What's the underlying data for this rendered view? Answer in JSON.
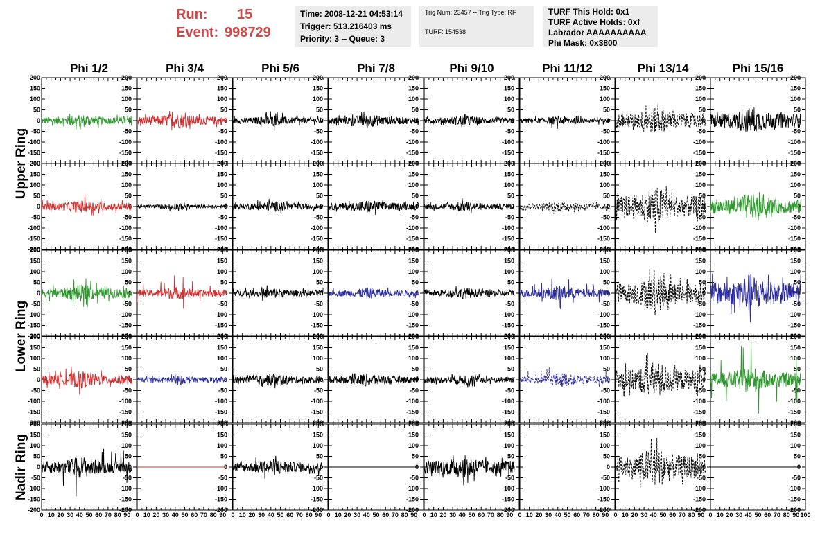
{
  "header": {
    "run_label": "Run:",
    "run_value": "15",
    "event_label": "Event:",
    "event_value": "998729",
    "time": "Time: 2008-12-21 04:53:14",
    "trigger": "Trigger: 513.216403 ms",
    "priority": "Priority: 3 -- Queue: 3",
    "trig_num": "Trig Num: 23457 -- Trig Type: RF",
    "turf": "TURF: 154538",
    "turf_this_hold": "TURF This Hold: 0x1",
    "turf_active_holds": "TURF Active Holds: 0xf",
    "labrador": "Labrador AAAAAAAAAA",
    "phi_mask": "Phi Mask: 0x3800"
  },
  "colors": {
    "run_text": "#d04848",
    "panel_bg": "#ececec",
    "green": "#2e9a2e",
    "red": "#d03030",
    "blue": "#2c2c9c",
    "black": "#000000"
  },
  "chart_data": {
    "type": "line",
    "columns": [
      "Phi 1/2",
      "Phi 3/4",
      "Phi 5/6",
      "Phi 7/8",
      "Phi 9/10",
      "Phi 11/12",
      "Phi 13/14",
      "Phi 15/16"
    ],
    "row_labels": [
      {
        "text": "Upper Ring",
        "rows": [
          0,
          1
        ]
      },
      {
        "text": "Lower Ring",
        "rows": [
          2,
          3
        ]
      },
      {
        "text": "Nadir Ring",
        "rows": [
          4
        ]
      }
    ],
    "xlim": [
      0,
      100
    ],
    "ylim": [
      -200,
      200
    ],
    "x_ticks": [
      "0",
      "10",
      "20",
      "30",
      "40",
      "50",
      "60",
      "70",
      "80",
      "90",
      "100"
    ],
    "y_ticks": [
      "200",
      "150",
      "100",
      "50",
      "0",
      "-50",
      "-100",
      "-150",
      "-200"
    ],
    "waveform_x_range": [
      0,
      95
    ],
    "grid": false,
    "panels": [
      [
        {
          "color": "green",
          "style": "solid",
          "amp": 30,
          "peak": 50
        },
        {
          "color": "red",
          "style": "solid",
          "amp": 35,
          "peak": 55
        },
        {
          "color": "black",
          "style": "solid",
          "amp": 25,
          "peak": 45
        },
        {
          "color": "black",
          "style": "solid",
          "amp": 30,
          "peak": 45
        },
        {
          "color": "black",
          "style": "solid",
          "amp": 25,
          "peak": 40
        },
        {
          "color": "black",
          "style": "solid",
          "amp": 20,
          "peak": 40
        },
        {
          "color": "black",
          "style": "dashed",
          "amp": 60,
          "peak": 85
        },
        {
          "color": "black",
          "style": "solid",
          "amp": 60,
          "peak": 75
        }
      ],
      [
        {
          "color": "red",
          "style": "solid",
          "amp": 30,
          "peak": 60
        },
        {
          "color": "black",
          "style": "solid",
          "amp": 15,
          "peak": 25
        },
        {
          "color": "black",
          "style": "solid",
          "amp": 25,
          "peak": 45
        },
        {
          "color": "black",
          "style": "solid",
          "amp": 30,
          "peak": 45
        },
        {
          "color": "black",
          "style": "solid",
          "amp": 25,
          "peak": 40
        },
        {
          "color": "black",
          "style": "dashed",
          "amp": 25,
          "peak": 40
        },
        {
          "color": "black",
          "style": "dashed",
          "amp": 90,
          "peak": 130
        },
        {
          "color": "green",
          "style": "solid",
          "amp": 60,
          "peak": 85
        }
      ],
      [
        {
          "color": "green",
          "style": "solid",
          "amp": 40,
          "peak": 75
        },
        {
          "color": "red",
          "style": "solid",
          "amp": 30,
          "peak": 85
        },
        {
          "color": "black",
          "style": "solid",
          "amp": 25,
          "peak": 45
        },
        {
          "color": "blue",
          "style": "solid",
          "amp": 25,
          "peak": 45
        },
        {
          "color": "black",
          "style": "solid",
          "amp": 25,
          "peak": 40
        },
        {
          "color": "blue",
          "style": "solid",
          "amp": 35,
          "peak": 80
        },
        {
          "color": "black",
          "style": "dashed",
          "amp": 85,
          "peak": 130
        },
        {
          "color": "blue",
          "style": "solid",
          "amp": 90,
          "peak": 170
        }
      ],
      [
        {
          "color": "red",
          "style": "solid",
          "amp": 40,
          "peak": 80
        },
        {
          "color": "blue",
          "style": "solid",
          "amp": 20,
          "peak": 30
        },
        {
          "color": "black",
          "style": "solid",
          "amp": 30,
          "peak": 45
        },
        {
          "color": "black",
          "style": "solid",
          "amp": 30,
          "peak": 45
        },
        {
          "color": "black",
          "style": "solid",
          "amp": 25,
          "peak": 40
        },
        {
          "color": "blue",
          "style": "dashed",
          "amp": 35,
          "peak": 75
        },
        {
          "color": "black",
          "style": "dashed",
          "amp": 85,
          "peak": 150
        },
        {
          "color": "green",
          "style": "solid",
          "amp": 60,
          "peak": 200
        }
      ],
      [
        {
          "color": "black",
          "style": "solid",
          "amp": 50,
          "peak": 150
        },
        {
          "color": "red",
          "style": "flat",
          "amp": 0,
          "peak": 0
        },
        {
          "color": "black",
          "style": "solid",
          "amp": 40,
          "peak": 70
        },
        {
          "color": "black",
          "style": "flat",
          "amp": 0,
          "peak": 0
        },
        {
          "color": "black",
          "style": "solid",
          "amp": 55,
          "peak": 90
        },
        null,
        {
          "color": "black",
          "style": "dashed",
          "amp": 95,
          "peak": 150
        },
        {
          "color": "black",
          "style": "flat",
          "amp": 0,
          "peak": 0
        }
      ]
    ]
  }
}
